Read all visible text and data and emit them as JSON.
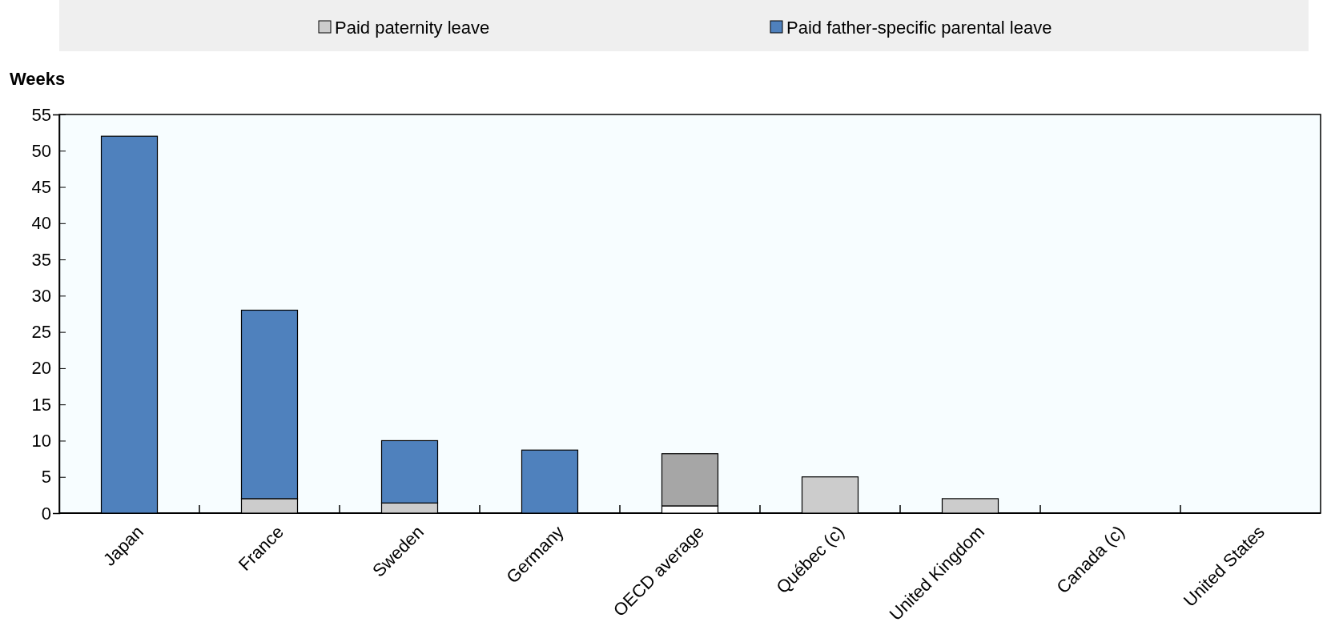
{
  "chart_data": {
    "type": "bar",
    "stacked": true,
    "ylabel": "Weeks",
    "legend": "top",
    "grid": false,
    "categories": [
      "Japan",
      "France",
      "Sweden",
      "Germany",
      "OECD average",
      "Québec (c)",
      "United Kingdom",
      "Canada (c)",
      "United States"
    ],
    "series": [
      {
        "name": "Paid paternity leave",
        "color": "#cccccc",
        "colors": [
          "#cccccc",
          "#cccccc",
          "#cccccc",
          "#cccccc",
          "#ffffff",
          "#cccccc",
          "#cccccc",
          "#cccccc",
          "#cccccc"
        ],
        "values": [
          0,
          2,
          1.4,
          0,
          1,
          5,
          2,
          0,
          0
        ]
      },
      {
        "name": "Paid father-specific parental leave",
        "color": "#4f81bd",
        "colors": [
          "#4f81bd",
          "#4f81bd",
          "#4f81bd",
          "#4f81bd",
          "#a6a6a6",
          "#4f81bd",
          "#4f81bd",
          "#4f81bd",
          "#4f81bd"
        ],
        "values": [
          52,
          26,
          8.6,
          8.7,
          7.2,
          0,
          0,
          0,
          0
        ]
      }
    ],
    "ylim": [
      0,
      55
    ],
    "yticks": [
      0,
      5,
      10,
      15,
      20,
      25,
      30,
      35,
      40,
      45,
      50,
      55
    ]
  }
}
